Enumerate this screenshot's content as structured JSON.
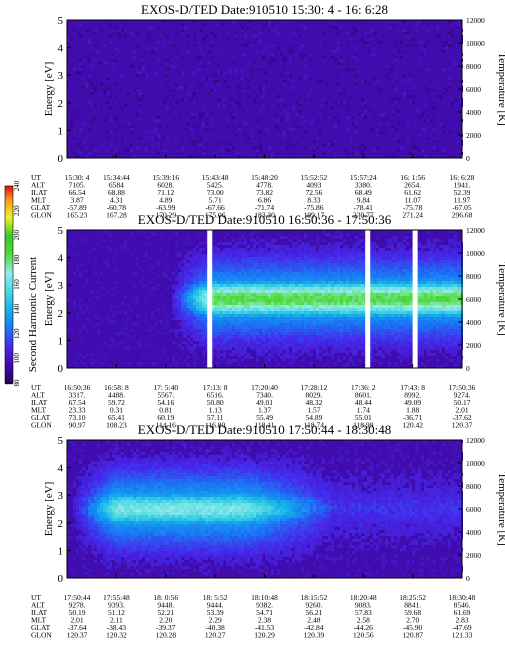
{
  "chart_data": [
    {
      "type": "heatmap",
      "title": "EXOS-D/TED   Date:910510  15:30: 4 - 16: 6:28",
      "ylabel": "Energy [eV]",
      "ylabel_right": "Temperature [K]",
      "ylim": [
        0,
        5
      ],
      "ylim_right": [
        0,
        12000
      ],
      "yticks": [
        "0",
        "1",
        "2",
        "3",
        "4",
        "5"
      ],
      "yticks_right": [
        "0",
        "2000",
        "4000",
        "6000",
        "8000",
        "10000",
        "12000"
      ],
      "band": null,
      "gaps": [],
      "table": {
        "labels": [
          "UT",
          "ALT",
          "ILAT",
          "MLT",
          "GLAT",
          "GLON"
        ],
        "columns": [
          [
            "15:30: 4",
            "7105.",
            "66.54",
            "3.87",
            "-57.89",
            "165.23"
          ],
          [
            "15:34:44",
            "6584",
            "68.88",
            "4.31",
            "-60.78",
            "167.28"
          ],
          [
            "15:39:16",
            "6028.",
            "71.12",
            "4.89",
            "-63.99",
            "170.29"
          ],
          [
            "15:43:48",
            "5425.",
            "73.00",
            "5.71",
            "-67.66",
            "175.06"
          ],
          [
            "15:48:20",
            "4778.",
            "73.82",
            "6.86",
            "-71.74",
            "183.30"
          ],
          [
            "15:52:52",
            "4093",
            "72.56",
            "8.33",
            "-75.86",
            "199.17"
          ],
          [
            "15:57:24",
            "3380.",
            "68.49",
            "9.84",
            "-78.41",
            "230.77"
          ],
          [
            "16: 1:56",
            "2654.",
            "61.62",
            "11.07",
            "-75.78",
            "271.24"
          ],
          [
            "16: 6:28",
            "1941.",
            "52.39",
            "11.97",
            "-67.05",
            "296.68"
          ]
        ]
      }
    },
    {
      "type": "heatmap",
      "title": "EXOS-D/TED   Date:910510  16:50:36 - 17:50:36",
      "ylabel": "Energy [eV]",
      "ylabel_right": "Temperature [K]",
      "ylim": [
        0,
        5
      ],
      "ylim_right": [
        0,
        12000
      ],
      "yticks": [
        "0",
        "1",
        "2",
        "3",
        "4",
        "5"
      ],
      "yticks_right": [
        "0",
        "2000",
        "4000",
        "6000",
        "8000",
        "10000",
        "12000"
      ],
      "band": {
        "center_ev": 2.5,
        "start_frac": 0.25,
        "peak_level": 180
      },
      "gaps": [
        0.355,
        0.755,
        0.875
      ],
      "colorbar": {
        "label": "Second Harmonic Current",
        "ticks": [
          "80",
          "100",
          "120",
          "140",
          "160",
          "180",
          "200",
          "220",
          "240"
        ]
      },
      "table": {
        "labels": [
          "UT",
          "ALT",
          "ILAT",
          "MLT",
          "GLAT",
          "GLON"
        ],
        "columns": [
          [
            "16:50:36",
            "3317.",
            "67.54",
            "23.33",
            "73.10",
            "90.97"
          ],
          [
            "16:58: 8",
            "4488.",
            "59.72",
            "0.31",
            "65.41",
            "108.23"
          ],
          [
            "17: 5:40",
            "5567.",
            "54.16",
            "0.81",
            "60.19",
            "114.16"
          ],
          [
            "17:13: 8",
            "6516.",
            "50.80",
            "1.13",
            "57.11",
            "116.80"
          ],
          [
            "17:20:40",
            "7340.",
            "49.01",
            "1.37",
            "55.49",
            "118.11"
          ],
          [
            "17:28:12",
            "8029.",
            "48.32",
            "1.57",
            "54.89",
            "118.74"
          ],
          [
            "17:36: 2",
            "8601.",
            "48.44",
            "1.74",
            "55.01",
            "118.99"
          ],
          [
            "17:43: 8",
            "8992.",
            "49.09",
            "1.88",
            "-36.71",
            "120.42"
          ],
          [
            "17:50:36",
            "9274.",
            "50.17",
            "2.01",
            "-37.62",
            "120.37"
          ]
        ]
      }
    },
    {
      "type": "heatmap",
      "title": "EXOS-D/TED   Date:910510  17:50:44 - 18:30:48",
      "ylabel": "Energy [eV]",
      "ylabel_right": "Temperature [K]",
      "ylim": [
        0,
        5
      ],
      "ylim_right": [
        0,
        12000
      ],
      "yticks": [
        "0",
        "1",
        "2",
        "3",
        "4",
        "5"
      ],
      "yticks_right": [
        "0",
        "2000",
        "4000",
        "6000",
        "8000",
        "10000",
        "12000"
      ],
      "band": {
        "center_ev": 2.5,
        "start_frac": 0.0,
        "fade_frac": 0.45,
        "peak_level": 160
      },
      "gaps": [],
      "table": {
        "labels": [
          "UT",
          "ALT",
          "ILAT",
          "MLT",
          "GLAT",
          "GLON"
        ],
        "columns": [
          [
            "17:50:44",
            "9278.",
            "50.19",
            "2.01",
            "-37.64",
            "120.37"
          ],
          [
            "17:55:48",
            "9393.",
            "51.12",
            "2.11",
            "-38.43",
            "120.32"
          ],
          [
            "18: 0:56",
            "9448.",
            "52.21",
            "2.20",
            "-39.37",
            "120.28"
          ],
          [
            "18: 5:52",
            "9444.",
            "53.39",
            "2.29",
            "-40.38",
            "120.27"
          ],
          [
            "18:10:48",
            "9382.",
            "54.71",
            "2.38",
            "-41.53",
            "120.29"
          ],
          [
            "18:15:52",
            "9260.",
            "56.21",
            "2.48",
            "-42.84",
            "120.39"
          ],
          [
            "18:20:48",
            "9083.",
            "57.83",
            "2.58",
            "-44.26",
            "120.56"
          ],
          [
            "18:25:52",
            "8841.",
            "59.68",
            "2.70",
            "-45.90",
            "120.87"
          ],
          [
            "18:30:48",
            "8546.",
            "61.69",
            "2.83",
            "-47.69",
            "121.33"
          ]
        ]
      }
    }
  ]
}
